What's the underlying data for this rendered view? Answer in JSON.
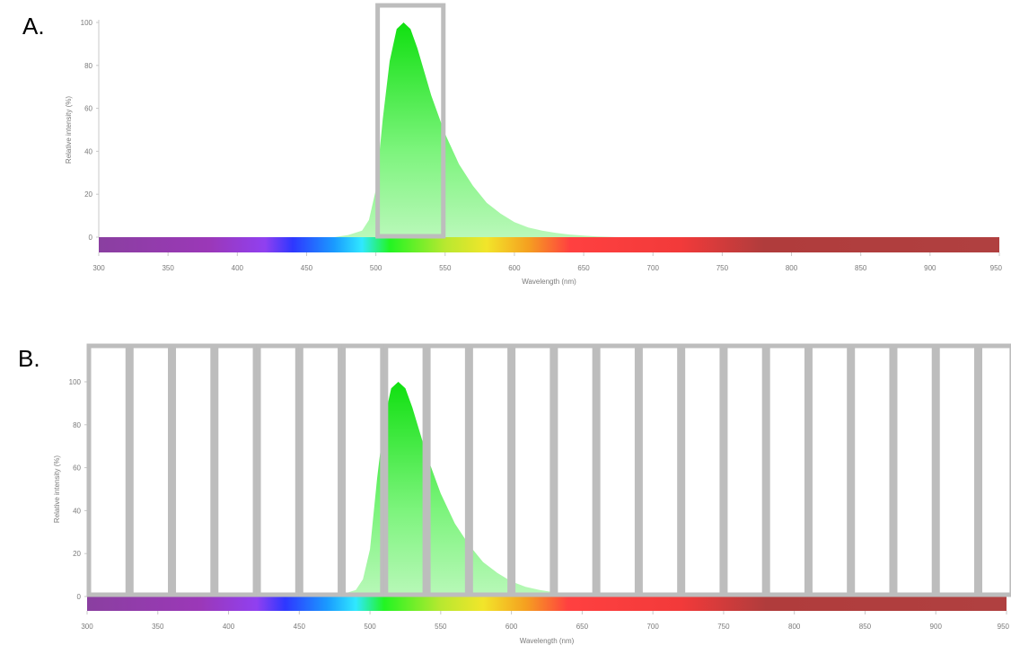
{
  "panels": [
    {
      "label": "A.",
      "windows": [
        [
          500,
          550
        ]
      ]
    },
    {
      "label": "B.",
      "windows": [
        [
          300,
          330
        ],
        [
          330,
          360
        ],
        [
          360,
          390
        ],
        [
          390,
          420
        ],
        [
          420,
          450
        ],
        [
          450,
          480
        ],
        [
          480,
          510
        ],
        [
          510,
          540
        ],
        [
          540,
          570
        ],
        [
          570,
          600
        ],
        [
          600,
          630
        ],
        [
          630,
          660
        ],
        [
          660,
          690
        ],
        [
          690,
          720
        ],
        [
          720,
          750
        ],
        [
          750,
          780
        ],
        [
          780,
          810
        ],
        [
          810,
          840
        ],
        [
          840,
          870
        ],
        [
          870,
          900
        ],
        [
          900,
          930
        ],
        [
          930,
          955
        ]
      ]
    }
  ],
  "chart_data": {
    "type": "area",
    "xlabel": "Wavelength (nm)",
    "ylabel": "Relative intensity (%)",
    "xlim": [
      300,
      950
    ],
    "ylim": [
      0,
      100
    ],
    "xticks": [
      300,
      350,
      400,
      450,
      500,
      550,
      600,
      650,
      700,
      750,
      800,
      850,
      900,
      950
    ],
    "yticks": [
      0,
      20,
      40,
      60,
      80,
      100
    ],
    "grid": false,
    "series": [
      {
        "color": "#22e622",
        "x": [
          470,
          480,
          490,
          495,
          500,
          505,
          510,
          515,
          520,
          525,
          530,
          540,
          550,
          560,
          570,
          580,
          590,
          600,
          610,
          620,
          630,
          640,
          650,
          660,
          675
        ],
        "y": [
          0,
          1,
          3,
          8,
          22,
          55,
          82,
          97,
          100,
          97,
          88,
          66,
          48,
          34,
          24,
          16,
          11,
          7,
          4.5,
          3,
          2,
          1.2,
          0.7,
          0.3,
          0
        ]
      }
    ],
    "spectrum_colors": [
      {
        "nm": 300,
        "color": "#8a3fa0"
      },
      {
        "nm": 380,
        "color": "#9b38b8"
      },
      {
        "nm": 420,
        "color": "#9040f0"
      },
      {
        "nm": 440,
        "color": "#2e37ff"
      },
      {
        "nm": 470,
        "color": "#1a9bff"
      },
      {
        "nm": 490,
        "color": "#30e8ff"
      },
      {
        "nm": 510,
        "color": "#22f522"
      },
      {
        "nm": 550,
        "color": "#b8e830"
      },
      {
        "nm": 580,
        "color": "#f2e52a"
      },
      {
        "nm": 610,
        "color": "#f5a020"
      },
      {
        "nm": 640,
        "color": "#ff4040"
      },
      {
        "nm": 720,
        "color": "#f23a3a"
      },
      {
        "nm": 780,
        "color": "#b03c3c"
      },
      {
        "nm": 950,
        "color": "#b04040"
      }
    ]
  }
}
